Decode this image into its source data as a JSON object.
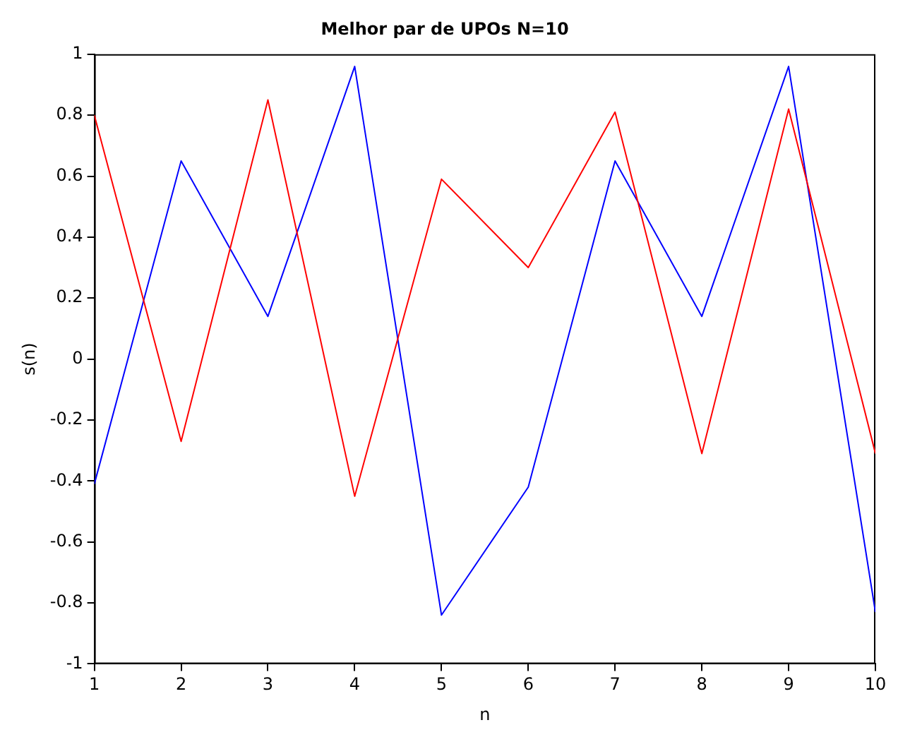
{
  "chart_data": {
    "type": "line",
    "title": "Melhor par de UPOs N=10",
    "xlabel": "n",
    "ylabel": "s(n)",
    "x": [
      1,
      2,
      3,
      4,
      5,
      6,
      7,
      8,
      9,
      10
    ],
    "series": [
      {
        "color": "#ff0000",
        "values": [
          0.8,
          -0.27,
          0.85,
          -0.45,
          0.59,
          0.3,
          0.81,
          -0.31,
          0.82,
          -0.31
        ]
      },
      {
        "color": "#0000ff",
        "values": [
          -0.41,
          0.65,
          0.14,
          0.96,
          -0.84,
          -0.42,
          0.65,
          0.14,
          0.96,
          -0.83
        ]
      }
    ],
    "xlim": [
      1,
      10
    ],
    "xticks": [
      1,
      2,
      3,
      4,
      5,
      6,
      7,
      8,
      9,
      10
    ],
    "ylim": [
      -1,
      1
    ],
    "yticks": [
      -1,
      -0.8,
      -0.6,
      -0.4,
      -0.2,
      0,
      0.2,
      0.4,
      0.6,
      0.8,
      1
    ],
    "grid": false,
    "legend": false,
    "marker": "none",
    "line_style": "solid"
  }
}
